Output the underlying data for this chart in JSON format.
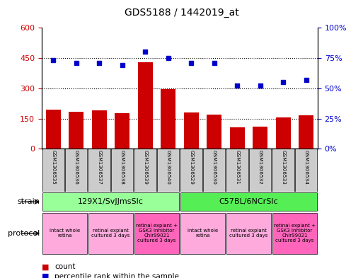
{
  "title": "GDS5188 / 1442019_at",
  "samples": [
    "GSM1306535",
    "GSM1306536",
    "GSM1306537",
    "GSM1306538",
    "GSM1306539",
    "GSM1306540",
    "GSM1306529",
    "GSM1306530",
    "GSM1306531",
    "GSM1306532",
    "GSM1306533",
    "GSM1306534"
  ],
  "counts": [
    195,
    185,
    190,
    175,
    430,
    295,
    180,
    170,
    105,
    110,
    155,
    165
  ],
  "percentiles": [
    73,
    71,
    71,
    69,
    80,
    75,
    71,
    71,
    52,
    52,
    55,
    57
  ],
  "left_ylim": [
    0,
    600
  ],
  "left_yticks": [
    0,
    150,
    300,
    450,
    600
  ],
  "left_yticklabels": [
    "0",
    "150",
    "300",
    "450",
    "600"
  ],
  "right_ylim": [
    0,
    100
  ],
  "right_yticks": [
    0,
    25,
    50,
    75,
    100
  ],
  "right_yticklabels": [
    "0%",
    "25%",
    "50%",
    "75%",
    "100%"
  ],
  "bar_color": "#cc0000",
  "dot_color": "#0000cc",
  "strain_groups": [
    {
      "label": "129X1/SvJJmsSlc",
      "start": 0,
      "end": 6,
      "color": "#99ff99"
    },
    {
      "label": "C57BL/6NCrSlc",
      "start": 6,
      "end": 12,
      "color": "#55ee55"
    }
  ],
  "protocol_groups": [
    {
      "label": "intact whole\nretina",
      "start": 0,
      "end": 2,
      "color": "#ffaadd"
    },
    {
      "label": "retinal explant\ncultured 3 days",
      "start": 2,
      "end": 4,
      "color": "#ffaadd"
    },
    {
      "label": "retinal explant +\nGSK3 inhibitor\nChir99021\ncultured 3 days",
      "start": 4,
      "end": 6,
      "color": "#ff66bb"
    },
    {
      "label": "intact whole\nretina",
      "start": 6,
      "end": 8,
      "color": "#ffaadd"
    },
    {
      "label": "retinal explant\ncultured 3 days",
      "start": 8,
      "end": 10,
      "color": "#ffaadd"
    },
    {
      "label": "retinal explant +\nGSK3 inhibitor\nChir99021\ncultured 3 days",
      "start": 10,
      "end": 12,
      "color": "#ff66bb"
    }
  ],
  "strain_label": "strain",
  "protocol_label": "protocol",
  "legend_count_label": "count",
  "legend_pct_label": "percentile rank within the sample",
  "left_tick_color": "#cc0000",
  "right_tick_color": "#0000cc",
  "grid_color": "#000000",
  "sample_box_color": "#cccccc",
  "fig_w": 5.13,
  "fig_h": 3.93,
  "dpi": 100
}
